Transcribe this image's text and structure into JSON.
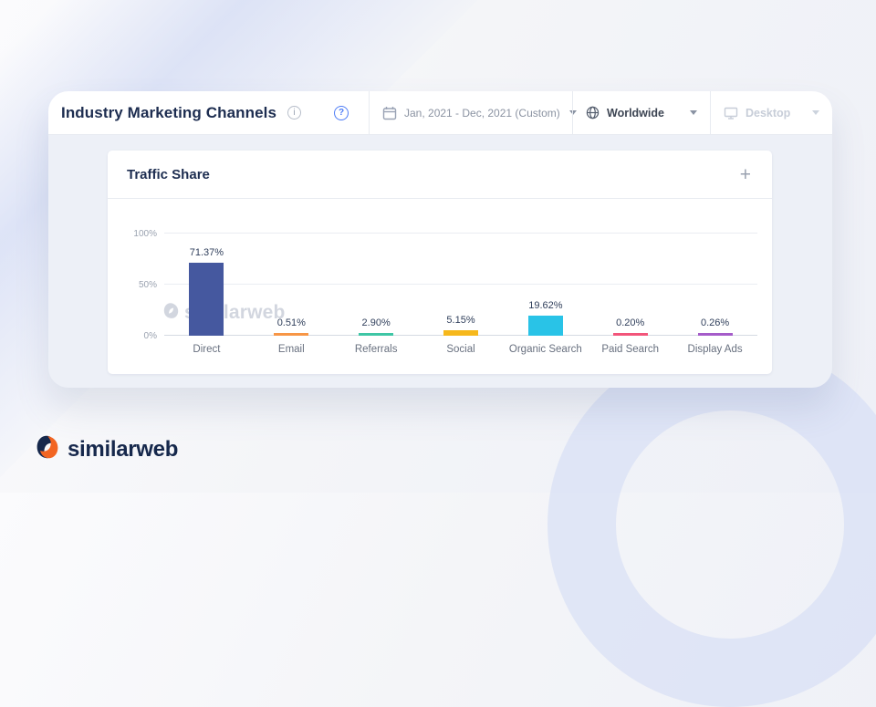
{
  "header": {
    "title": "Industry Marketing Channels",
    "date_range": "Jan, 2021 - Dec, 2021 (Custom)",
    "country": "Worldwide",
    "device": "Desktop"
  },
  "icons": {
    "info": "i",
    "help": "?",
    "expand": "+"
  },
  "card": {
    "title": "Traffic Share"
  },
  "watermark_text": "similarweb",
  "footer": {
    "brand": "similarweb"
  },
  "brand_colors": {
    "navy": "#16284c",
    "orange": "#f26522"
  },
  "chart_data": {
    "type": "bar",
    "title": "Traffic Share",
    "categories": [
      "Direct",
      "Email",
      "Referrals",
      "Social",
      "Organic Search",
      "Paid Search",
      "Display Ads"
    ],
    "values": [
      71.37,
      0.51,
      2.9,
      5.15,
      19.62,
      0.2,
      0.26
    ],
    "value_labels": [
      "71.37%",
      "0.51%",
      "2.90%",
      "5.15%",
      "19.62%",
      "0.20%",
      "0.26%"
    ],
    "colors": [
      "#45589f",
      "#f79646",
      "#3ec6a5",
      "#f6b81c",
      "#29c3e7",
      "#f2557a",
      "#a55cc9"
    ],
    "xlabel": "",
    "ylabel": "",
    "ylim": [
      0,
      100
    ],
    "y_ticks": [
      "0%",
      "50%",
      "100%"
    ],
    "grid": true,
    "legend": false
  }
}
